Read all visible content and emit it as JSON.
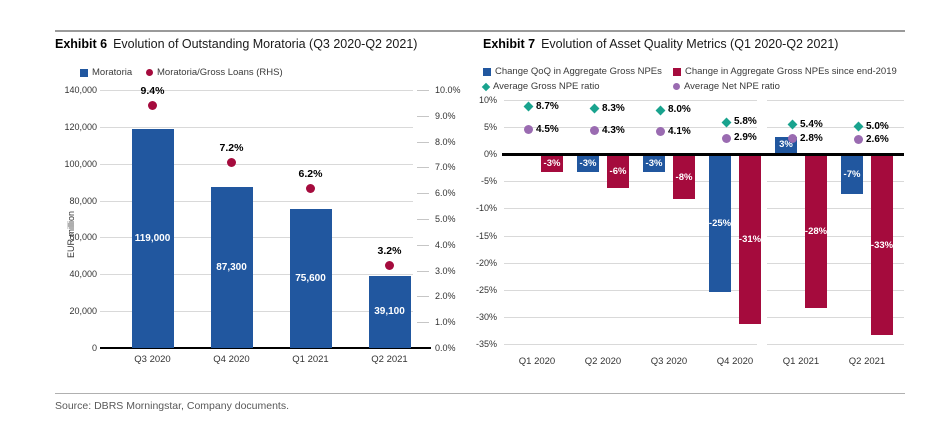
{
  "source_line": "Source: DBRS Morningstar, Company documents.",
  "colors": {
    "blue": "#21579F",
    "crimson": "#A50B3D",
    "teal": "#19A38E",
    "purple": "#9A6BB1",
    "gridline": "#D9D9D9",
    "axis_black": "#000000"
  },
  "chart_data": [
    {
      "type": "bar",
      "exhibit": "Exhibit 6",
      "title": "Evolution of Outstanding Moratoria (Q3 2020-Q2 2021)",
      "categories": [
        "Q3 2020",
        "Q4 2020",
        "Q1 2021",
        "Q2 2021"
      ],
      "series": [
        {
          "name": "Moratoria",
          "type": "bar",
          "axis": "left",
          "marker": "square",
          "color_key": "blue",
          "values": [
            119000,
            87300,
            75600,
            39100
          ],
          "labels": [
            "119,000",
            "87,300",
            "75,600",
            "39,100"
          ]
        },
        {
          "name": "Moratoria/Gross Loans (RHS)",
          "type": "point",
          "axis": "right",
          "marker": "circle",
          "color_key": "crimson",
          "values": [
            9.4,
            7.2,
            6.2,
            3.2
          ],
          "labels": [
            "9.4%",
            "7.2%",
            "6.2%",
            "3.2%"
          ]
        }
      ],
      "ylabel": "EUR million",
      "left_axis": {
        "range": [
          0,
          140000
        ],
        "ticks": [
          0,
          20000,
          40000,
          60000,
          80000,
          100000,
          120000,
          140000
        ],
        "tick_labels": [
          "0",
          "20,000",
          "40,000",
          "60,000",
          "80,000",
          "100,000",
          "120,000",
          "140,000"
        ]
      },
      "right_axis": {
        "range": [
          0,
          10
        ],
        "ticks": [
          0,
          1,
          2,
          3,
          4,
          5,
          6,
          7,
          8,
          9,
          10
        ],
        "tick_labels": [
          "0.0%",
          "1.0%",
          "2.0%",
          "3.0%",
          "4.0%",
          "5.0%",
          "6.0%",
          "7.0%",
          "8.0%",
          "9.0%",
          "10.0%"
        ]
      },
      "grid": true,
      "legend_position": "top"
    },
    {
      "type": "bar",
      "exhibit": "Exhibit 7",
      "title": "Evolution of Asset Quality Metrics (Q1 2020-Q2 2021)",
      "categories": [
        "Q1 2020",
        "Q2 2020",
        "Q3 2020",
        "Q4 2020",
        "Q1 2021",
        "Q2 2021"
      ],
      "series": [
        {
          "name": "Change QoQ in Aggregate Gross NPEs",
          "type": "bar",
          "marker": "square",
          "color_key": "blue",
          "values": [
            null,
            -3,
            -3,
            -25,
            3,
            -7
          ],
          "labels": [
            "",
            "-3%",
            "-3%",
            "-25%",
            "3%",
            "-7%"
          ]
        },
        {
          "name": "Change in Aggregate Gross NPEs since end-2019",
          "type": "bar",
          "marker": "square",
          "color_key": "crimson",
          "values": [
            -3,
            -6,
            -8,
            -31,
            -28,
            -33
          ],
          "labels": [
            "-3%",
            "-6%",
            "-8%",
            "-31%",
            "-28%",
            "-33%"
          ]
        },
        {
          "name": "Average Gross NPE ratio",
          "type": "point",
          "marker": "diamond",
          "color_key": "teal",
          "values": [
            8.7,
            8.3,
            8.0,
            5.8,
            5.4,
            5.0
          ],
          "labels": [
            "8.7%",
            "8.3%",
            "8.0%",
            "5.8%",
            "5.4%",
            "5.0%"
          ]
        },
        {
          "name": "Average Net NPE ratio",
          "type": "point",
          "marker": "circle",
          "color_key": "purple",
          "values": [
            4.5,
            4.3,
            4.1,
            2.9,
            2.8,
            2.6
          ],
          "labels": [
            "4.5%",
            "4.3%",
            "4.1%",
            "2.9%",
            "2.8%",
            "2.6%"
          ]
        }
      ],
      "y_axis": {
        "range": [
          -35,
          10
        ],
        "ticks": [
          10,
          5,
          0,
          -5,
          -10,
          -15,
          -20,
          -25,
          -30,
          -35
        ],
        "tick_labels": [
          "10%",
          "5%",
          "0%",
          "-5%",
          "-10%",
          "-15%",
          "-20%",
          "-25%",
          "-30%",
          "-35%"
        ]
      },
      "grid": true,
      "panel_divider_after_category": "Q4 2020",
      "legend_position": "top"
    }
  ]
}
